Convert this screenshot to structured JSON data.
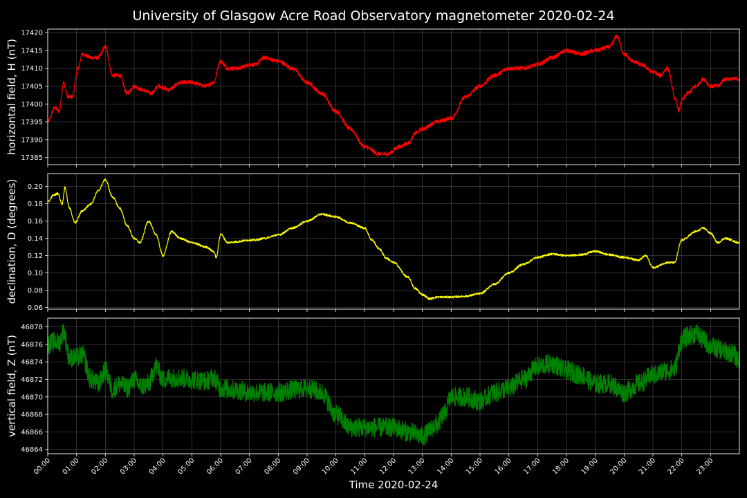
{
  "figure": {
    "title": "University of Glasgow Acre Road Observatory magnetometer 2020-02-24",
    "xlabel": "Time 2020-02-24",
    "background": "#000000",
    "grid_color": "#808080"
  },
  "chart_data": [
    {
      "type": "line",
      "ylabel": "horizontal field, H (nT)",
      "color": "#ff0000",
      "xlim": [
        0,
        24
      ],
      "ylim": [
        17383,
        17421
      ],
      "yticks": [
        17385,
        17390,
        17395,
        17400,
        17405,
        17410,
        17415,
        17420
      ],
      "noise": 0.7,
      "x": [
        0,
        0.25,
        0.4,
        0.55,
        0.7,
        0.85,
        1.05,
        1.2,
        1.5,
        1.75,
        2.0,
        2.25,
        2.5,
        2.75,
        3.0,
        3.25,
        3.6,
        3.85,
        4.2,
        4.6,
        5.0,
        5.5,
        5.75,
        6.0,
        6.25,
        6.6,
        7.0,
        7.2,
        7.5,
        8.0,
        8.5,
        9.0,
        9.5,
        10.0,
        10.5,
        11.0,
        11.5,
        11.8,
        12.2,
        12.5,
        12.8,
        13.0,
        13.5,
        14.0,
        14.5,
        15.0,
        15.5,
        16.0,
        16.5,
        17.0,
        17.5,
        18.0,
        18.5,
        19.0,
        19.5,
        19.75,
        20.0,
        20.3,
        20.6,
        21.0,
        21.25,
        21.5,
        21.8,
        21.9,
        22.0,
        22.2,
        22.5,
        22.75,
        23.0,
        23.25,
        23.5,
        23.75,
        24.0
      ],
      "y": [
        17395,
        17399,
        17398,
        17406,
        17402,
        17402,
        17410,
        17414,
        17413,
        17413,
        17416,
        17408,
        17408,
        17403,
        17405,
        17404,
        17403,
        17405,
        17404,
        17406,
        17406,
        17405,
        17406,
        17412,
        17410,
        17410,
        17411,
        17411,
        17413,
        17412,
        17410,
        17406,
        17403,
        17398,
        17393,
        17388,
        17386,
        17386,
        17388,
        17389,
        17392,
        17393,
        17395,
        17396,
        17402,
        17405,
        17408,
        17410,
        17410,
        17411,
        17413,
        17415,
        17414,
        17415,
        17416,
        17419,
        17414,
        17412,
        17411,
        17409,
        17408,
        17410,
        17401,
        17398,
        17401,
        17403,
        17405,
        17407,
        17405,
        17405,
        17407,
        17407,
        17407
      ]
    },
    {
      "type": "line",
      "ylabel": "declination, D (degrees)",
      "color": "#ffff00",
      "xlim": [
        0,
        24
      ],
      "ylim": [
        0.058,
        0.215
      ],
      "yticks": [
        0.06,
        0.08,
        0.1,
        0.12,
        0.14,
        0.16,
        0.18,
        0.2
      ],
      "noise": 0.0015,
      "x": [
        0,
        0.2,
        0.35,
        0.5,
        0.6,
        0.75,
        0.95,
        1.2,
        1.5,
        1.75,
        2.0,
        2.25,
        2.5,
        2.75,
        3.0,
        3.2,
        3.5,
        3.75,
        4.0,
        4.3,
        4.6,
        5.0,
        5.5,
        5.75,
        5.85,
        6.0,
        6.25,
        6.5,
        7.0,
        7.2,
        7.5,
        8.0,
        8.5,
        9.0,
        9.5,
        10.0,
        10.5,
        11.0,
        11.25,
        11.5,
        11.75,
        12.0,
        12.5,
        12.75,
        13.0,
        13.25,
        13.5,
        14.0,
        14.5,
        15.0,
        15.5,
        16.0,
        16.5,
        17.0,
        17.5,
        18.0,
        18.5,
        19.0,
        19.5,
        20.0,
        20.5,
        20.75,
        21.0,
        21.5,
        21.75,
        22.0,
        22.5,
        22.75,
        23.0,
        23.25,
        23.5,
        24.0
      ],
      "y": [
        0.182,
        0.19,
        0.192,
        0.18,
        0.199,
        0.175,
        0.158,
        0.172,
        0.18,
        0.195,
        0.208,
        0.188,
        0.175,
        0.155,
        0.14,
        0.135,
        0.16,
        0.145,
        0.12,
        0.148,
        0.14,
        0.135,
        0.13,
        0.125,
        0.118,
        0.145,
        0.135,
        0.136,
        0.138,
        0.138,
        0.14,
        0.144,
        0.152,
        0.16,
        0.168,
        0.165,
        0.158,
        0.152,
        0.138,
        0.128,
        0.117,
        0.112,
        0.095,
        0.082,
        0.075,
        0.07,
        0.072,
        0.072,
        0.073,
        0.076,
        0.087,
        0.1,
        0.11,
        0.118,
        0.122,
        0.12,
        0.121,
        0.125,
        0.121,
        0.118,
        0.115,
        0.12,
        0.106,
        0.112,
        0.112,
        0.138,
        0.148,
        0.152,
        0.146,
        0.135,
        0.14,
        0.135
      ]
    },
    {
      "type": "line",
      "ylabel": "vertical field, Z (nT)",
      "color": "#008000",
      "xlim": [
        0,
        24
      ],
      "ylim": [
        46863.5,
        46879
      ],
      "yticks": [
        46864,
        46866,
        46868,
        46870,
        46872,
        46874,
        46876,
        46878
      ],
      "noise": 1.4,
      "x": [
        0,
        0.25,
        0.4,
        0.55,
        0.75,
        1.0,
        1.2,
        1.5,
        1.75,
        2.0,
        2.25,
        2.5,
        2.75,
        3.0,
        3.25,
        3.5,
        3.75,
        4.0,
        4.25,
        4.5,
        5.0,
        5.5,
        5.75,
        6.0,
        6.5,
        7.0,
        7.5,
        8.0,
        8.5,
        9.0,
        9.5,
        10.0,
        10.5,
        11.0,
        11.5,
        12.0,
        12.5,
        13.0,
        13.5,
        13.75,
        14.0,
        14.5,
        15.0,
        15.5,
        16.0,
        16.5,
        17.0,
        17.5,
        18.0,
        18.5,
        19.0,
        19.5,
        20.0,
        20.5,
        21.0,
        21.5,
        21.75,
        22.0,
        22.25,
        22.5,
        22.75,
        23.0,
        23.25,
        23.5,
        23.75,
        24.0
      ],
      "y": [
        46876,
        46876.3,
        46876.2,
        46877.5,
        46874.5,
        46874.5,
        46874.8,
        46872,
        46871.5,
        46873,
        46870.8,
        46871.5,
        46871,
        46872,
        46871.2,
        46871.5,
        46873.5,
        46872,
        46872.2,
        46872.2,
        46872,
        46871.8,
        46872.2,
        46871,
        46870.8,
        46870.5,
        46870.5,
        46870.5,
        46870.8,
        46871,
        46870.5,
        46868,
        46866.5,
        46866.5,
        46866.5,
        46866.5,
        46866,
        46865.5,
        46866.8,
        46868,
        46870,
        46870,
        46869.5,
        46870.5,
        46871,
        46872,
        46873.5,
        46873.8,
        46873,
        46872.5,
        46871.5,
        46871.5,
        46870.5,
        46871.5,
        46872.5,
        46873,
        46873.2,
        46876.5,
        46877,
        46877.3,
        46876.5,
        46875.8,
        46875.5,
        46875.2,
        46875,
        46874.2
      ]
    }
  ],
  "xaxis": {
    "ticks": [
      "00:00",
      "01:00",
      "02:00",
      "03:00",
      "04:00",
      "05:00",
      "06:00",
      "07:00",
      "08:00",
      "09:00",
      "10:00",
      "11:00",
      "12:00",
      "13:00",
      "14:00",
      "15:00",
      "16:00",
      "17:00",
      "18:00",
      "19:00",
      "20:00",
      "21:00",
      "22:00",
      "23:00"
    ]
  }
}
